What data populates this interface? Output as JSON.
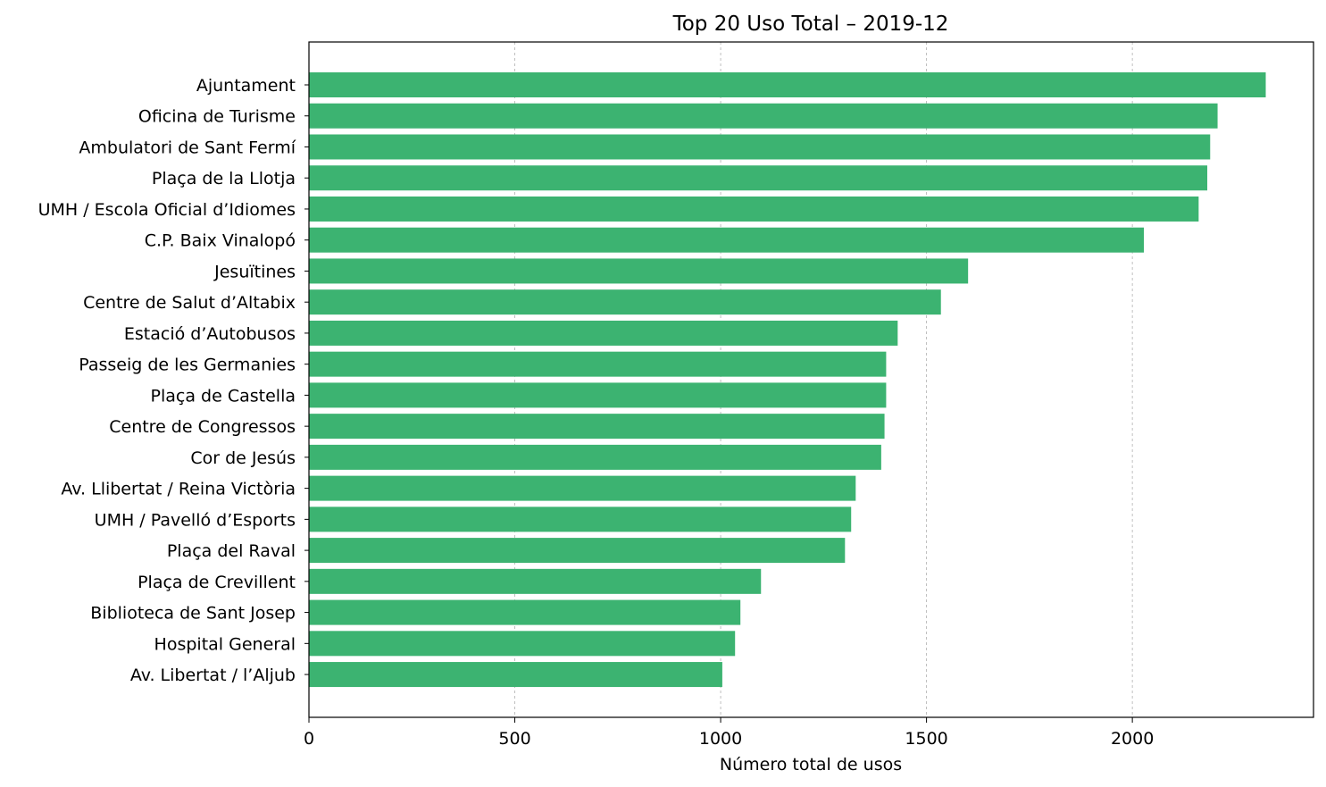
{
  "chart_data": {
    "type": "bar",
    "orientation": "horizontal",
    "title": "Top 20 Uso Total – 2019-12",
    "xlabel": "Número total de usos",
    "ylabel": "",
    "xlim": [
      0,
      2440
    ],
    "xticks": [
      0,
      500,
      1000,
      1500,
      2000
    ],
    "grid": "x-dashed",
    "bar_color": "#3cb371",
    "categories": [
      "Ajuntament",
      "Oficina de Turisme",
      "Ambulatori de Sant Fermí",
      "Plaça de la Llotja",
      "UMH / Escola Oficial d’Idiomes",
      "C.P. Baix Vinalopó",
      "Jesuïtines",
      "Centre de Salut d’Altabix",
      "Estació d’Autobusos",
      "Passeig de les Germanies",
      "Plaça de Castella",
      "Centre de Congressos",
      "Cor de Jesús",
      "Av. Llibertat / Reina Victòria",
      "UMH / Pavelló d’Esports",
      "Plaça del Raval",
      "Plaça de Crevillent",
      "Biblioteca de Sant Josep",
      "Hospital General",
      "Av. Libertat / l’Aljub"
    ],
    "values": [
      2324,
      2207,
      2189,
      2182,
      2161,
      2028,
      1601,
      1535,
      1430,
      1402,
      1402,
      1398,
      1390,
      1328,
      1317,
      1302,
      1098,
      1048,
      1035,
      1004
    ]
  }
}
